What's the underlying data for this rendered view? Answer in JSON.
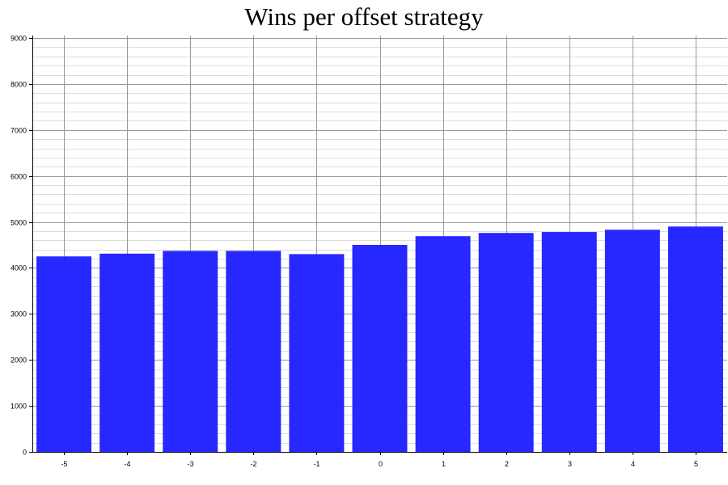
{
  "chart_data": {
    "type": "bar",
    "title": "Wins per offset strategy",
    "xlabel": "",
    "ylabel": "",
    "categories": [
      "-5",
      "-4",
      "-3",
      "-2",
      "-1",
      "0",
      "1",
      "2",
      "3",
      "4",
      "5"
    ],
    "values": [
      4250,
      4310,
      4370,
      4370,
      4300,
      4500,
      4690,
      4760,
      4780,
      4830,
      4900
    ],
    "ylim": [
      0,
      9000
    ],
    "yticks": [
      0,
      1000,
      2000,
      3000,
      4000,
      5000,
      6000,
      7000,
      8000,
      9000
    ],
    "minor_tick_step": 200,
    "grid": true,
    "legend": "none",
    "bar_color": "#2323ff",
    "grid_major_color": "#999999",
    "grid_minor_color": "#dddddd",
    "axis_color": "#000000"
  }
}
